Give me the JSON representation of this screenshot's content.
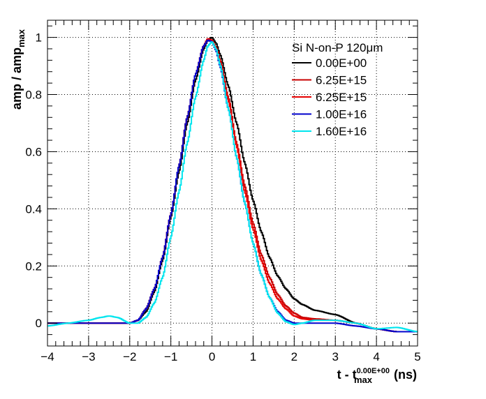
{
  "chart_data": {
    "type": "line",
    "xlabel": {
      "base": "t - t",
      "sub": "max",
      "sup": "0.00E+00",
      "unit": " (ns)"
    },
    "ylabel": {
      "base": "amp / amp",
      "sub": "max"
    },
    "xlim": [
      -4,
      5
    ],
    "ylim": [
      -0.08,
      1.06
    ],
    "xticks": [
      -4,
      -3,
      -2,
      -1,
      0,
      1,
      2,
      3,
      4,
      5
    ],
    "yticks": [
      0,
      0.2,
      0.4,
      0.6,
      0.8,
      1
    ],
    "ytick_labels": [
      "0",
      "0.2",
      "0.4",
      "0.6",
      "0.8",
      "1"
    ],
    "grid": true,
    "legend": {
      "title": "Si N-on-P 120μm",
      "placement": "top-right"
    },
    "series": [
      {
        "name": "0.00E+00",
        "color": "#000000",
        "x": [
          -4,
          -3,
          -2.5,
          -2,
          -1.8,
          -1.6,
          -1.4,
          -1.2,
          -1.0,
          -0.8,
          -0.6,
          -0.4,
          -0.2,
          -0.1,
          0,
          0.1,
          0.2,
          0.4,
          0.6,
          0.8,
          1.0,
          1.2,
          1.4,
          1.6,
          1.8,
          2.0,
          2.2,
          2.5,
          3.0,
          3.5,
          4.0,
          4.5,
          5.0
        ],
        "y": [
          0.0,
          0.0,
          0.0,
          0.0,
          0.01,
          0.04,
          0.11,
          0.22,
          0.37,
          0.53,
          0.7,
          0.85,
          0.96,
          0.99,
          1.0,
          0.98,
          0.94,
          0.83,
          0.7,
          0.56,
          0.43,
          0.32,
          0.23,
          0.165,
          0.12,
          0.085,
          0.065,
          0.045,
          0.03,
          0.0,
          -0.02,
          -0.03,
          -0.03
        ]
      },
      {
        "name": "6.25E+15",
        "color": "#c80000",
        "x": [
          -4,
          -3,
          -2.5,
          -2,
          -1.8,
          -1.6,
          -1.4,
          -1.2,
          -1.0,
          -0.8,
          -0.6,
          -0.4,
          -0.2,
          -0.1,
          0,
          0.1,
          0.2,
          0.4,
          0.6,
          0.8,
          1.0,
          1.2,
          1.4,
          1.6,
          1.8,
          2.0,
          2.2,
          2.5,
          3.0,
          3.5,
          4.0,
          4.5,
          5.0
        ],
        "y": [
          0.0,
          0.0,
          0.0,
          0.0,
          0.01,
          0.05,
          0.12,
          0.23,
          0.38,
          0.55,
          0.72,
          0.87,
          0.97,
          0.995,
          0.99,
          0.965,
          0.92,
          0.79,
          0.63,
          0.48,
          0.35,
          0.24,
          0.16,
          0.1,
          0.06,
          0.035,
          0.02,
          0.015,
          0.01,
          0.0,
          -0.02,
          -0.03,
          -0.03
        ]
      },
      {
        "name": "6.25E+15",
        "color": "#e60000",
        "x": [
          -4,
          -3,
          -2.5,
          -2,
          -1.8,
          -1.6,
          -1.4,
          -1.2,
          -1.0,
          -0.8,
          -0.6,
          -0.4,
          -0.2,
          -0.1,
          0,
          0.1,
          0.2,
          0.4,
          0.6,
          0.8,
          1.0,
          1.2,
          1.4,
          1.6,
          1.8,
          2.0,
          2.2,
          2.5,
          3.0,
          3.5,
          4.0,
          4.5,
          5.0
        ],
        "y": [
          0.0,
          0.0,
          0.0,
          0.0,
          0.01,
          0.05,
          0.12,
          0.23,
          0.38,
          0.55,
          0.72,
          0.87,
          0.97,
          0.995,
          0.99,
          0.965,
          0.915,
          0.78,
          0.62,
          0.46,
          0.33,
          0.22,
          0.14,
          0.085,
          0.05,
          0.025,
          0.015,
          0.01,
          0.01,
          0.0,
          -0.02,
          -0.03,
          -0.03
        ]
      },
      {
        "name": "1.00E+16",
        "color": "#0000cc",
        "x": [
          -4,
          -3,
          -2.5,
          -2,
          -1.8,
          -1.6,
          -1.4,
          -1.2,
          -1.0,
          -0.8,
          -0.6,
          -0.4,
          -0.2,
          -0.1,
          0,
          0.1,
          0.2,
          0.4,
          0.6,
          0.8,
          1.0,
          1.2,
          1.4,
          1.6,
          1.8,
          2.0,
          2.2,
          2.5,
          3.0,
          3.5,
          4.0,
          4.5,
          5.0
        ],
        "y": [
          0.0,
          0.0,
          0.0,
          0.0,
          0.01,
          0.05,
          0.12,
          0.23,
          0.38,
          0.55,
          0.72,
          0.87,
          0.97,
          0.99,
          0.985,
          0.955,
          0.9,
          0.75,
          0.58,
          0.42,
          0.28,
          0.17,
          0.09,
          0.04,
          0.01,
          0.0,
          0.0,
          0.0,
          0.0,
          -0.01,
          -0.02,
          -0.03,
          -0.03
        ]
      },
      {
        "name": "1.60E+16",
        "color": "#00e5ee",
        "x": [
          -4,
          -3.5,
          -3,
          -2.7,
          -2.5,
          -2.3,
          -2.0,
          -1.8,
          -1.6,
          -1.4,
          -1.2,
          -1.0,
          -0.8,
          -0.6,
          -0.4,
          -0.2,
          -0.1,
          0,
          0.1,
          0.2,
          0.4,
          0.6,
          0.8,
          1.0,
          1.2,
          1.4,
          1.6,
          1.8,
          2.0,
          2.2,
          2.5,
          3.0,
          3.5,
          4.0,
          4.5,
          5.0
        ],
        "y": [
          -0.01,
          0.0,
          0.01,
          0.02,
          0.025,
          0.02,
          0.0,
          0.0,
          0.02,
          0.07,
          0.16,
          0.3,
          0.46,
          0.63,
          0.79,
          0.92,
          0.97,
          0.985,
          0.96,
          0.905,
          0.75,
          0.58,
          0.42,
          0.28,
          0.17,
          0.09,
          0.035,
          0.005,
          -0.005,
          0.0,
          0.01,
          0.01,
          0.0,
          -0.02,
          -0.015,
          -0.03
        ]
      }
    ]
  }
}
